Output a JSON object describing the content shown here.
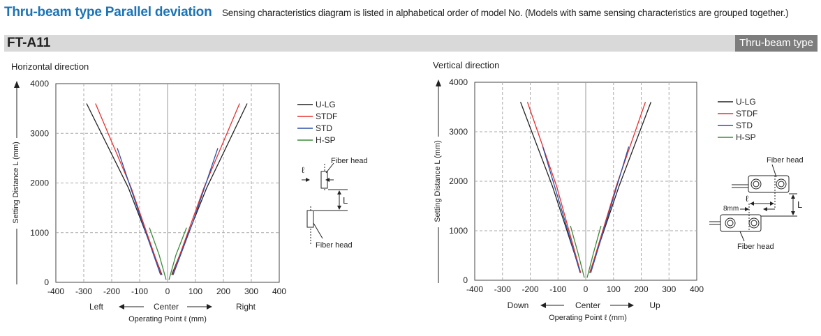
{
  "header": {
    "title": "Thru-beam type  Parallel deviation",
    "description": "Sensing characteristics diagram is listed in alphabetical order of model No. (Models with same sensing characteristics are grouped together.)"
  },
  "model": {
    "name": "FT-A11",
    "badge": "Thru-beam type"
  },
  "colors": {
    "title": "#1a73b5",
    "U-LG": "#222222",
    "STDF": "#e53030",
    "STD": "#2a4fa8",
    "H-SP": "#3a8a3a"
  },
  "chart_data": [
    {
      "type": "line",
      "title": "Horizontal direction",
      "xlabel": "Operating Point ℓ (mm)",
      "ylabel": "Setting Distance L (mm)",
      "xlim": [
        -400,
        400
      ],
      "ylim": [
        0,
        4000
      ],
      "xticks": [
        "-400",
        "-300",
        "-200",
        "-100",
        "0",
        "100",
        "200",
        "300",
        "400"
      ],
      "yticks": [
        "0",
        "1000",
        "2000",
        "3000",
        "4000"
      ],
      "grid": true,
      "legend_position": "right",
      "direction_labels": {
        "left": "Left",
        "center": "Center",
        "right": "Right"
      },
      "series": [
        {
          "name": "U-LG",
          "left": [
            [
              -290,
              3600
            ],
            [
              -140,
              1900
            ],
            [
              -20,
              150
            ]
          ],
          "right": [
            [
              285,
              3600
            ],
            [
              140,
              1900
            ],
            [
              15,
              150
            ]
          ]
        },
        {
          "name": "STDF",
          "left": [
            [
              -258,
              3600
            ],
            [
              -130,
              1900
            ],
            [
              -22,
              150
            ]
          ],
          "right": [
            [
              258,
              3600
            ],
            [
              130,
              1900
            ],
            [
              18,
              150
            ]
          ]
        },
        {
          "name": "STD",
          "left": [
            [
              -180,
              2700
            ],
            [
              -90,
              1200
            ],
            [
              -25,
              150
            ]
          ],
          "right": [
            [
              180,
              2700
            ],
            [
              90,
              1200
            ],
            [
              20,
              150
            ]
          ]
        },
        {
          "name": "H-SP",
          "left": [
            [
              -65,
              1100
            ],
            [
              -30,
              550
            ],
            [
              -5,
              50
            ]
          ],
          "right": [
            [
              68,
              1100
            ],
            [
              30,
              550
            ],
            [
              5,
              50
            ]
          ]
        }
      ],
      "diagram": {
        "label_top": "Fiber head",
        "label_bottom": "Fiber head",
        "offset_symbol": "ℓ",
        "distance_symbol": "L"
      }
    },
    {
      "type": "line",
      "title": "Vertical direction",
      "xlabel": "Operating Point ℓ (mm)",
      "ylabel": "Setting Distance L (mm)",
      "xlim": [
        -400,
        400
      ],
      "ylim": [
        0,
        4000
      ],
      "xticks": [
        "-400",
        "-300",
        "-200",
        "-100",
        "0",
        "100",
        "200",
        "300",
        "400"
      ],
      "yticks": [
        "0",
        "1000",
        "2000",
        "3000",
        "4000"
      ],
      "grid": true,
      "legend_position": "right",
      "direction_labels": {
        "left": "Down",
        "center": "Center",
        "right": "Up"
      },
      "series": [
        {
          "name": "U-LG",
          "left": [
            [
              -235,
              3600
            ],
            [
              -120,
              1900
            ],
            [
              -18,
              150
            ]
          ],
          "right": [
            [
              235,
              3600
            ],
            [
              120,
              1900
            ],
            [
              14,
              150
            ]
          ]
        },
        {
          "name": "STDF",
          "left": [
            [
              -210,
              3600
            ],
            [
              -105,
              1900
            ],
            [
              -18,
              150
            ]
          ],
          "right": [
            [
              215,
              3600
            ],
            [
              110,
              1900
            ],
            [
              15,
              150
            ]
          ]
        },
        {
          "name": "STD",
          "left": [
            [
              -155,
              2700
            ],
            [
              -75,
              1200
            ],
            [
              -20,
              150
            ]
          ],
          "right": [
            [
              155,
              2700
            ],
            [
              75,
              1200
            ],
            [
              18,
              150
            ]
          ]
        },
        {
          "name": "H-SP",
          "left": [
            [
              -55,
              1100
            ],
            [
              -28,
              550
            ],
            [
              -5,
              50
            ]
          ],
          "right": [
            [
              55,
              1100
            ],
            [
              28,
              550
            ],
            [
              5,
              50
            ]
          ]
        }
      ],
      "diagram": {
        "label_top": "Fiber head",
        "label_bottom": "Fiber head",
        "offset_symbol": "ℓ",
        "distance_symbol": "L",
        "spacing_label": "8mm"
      }
    }
  ]
}
